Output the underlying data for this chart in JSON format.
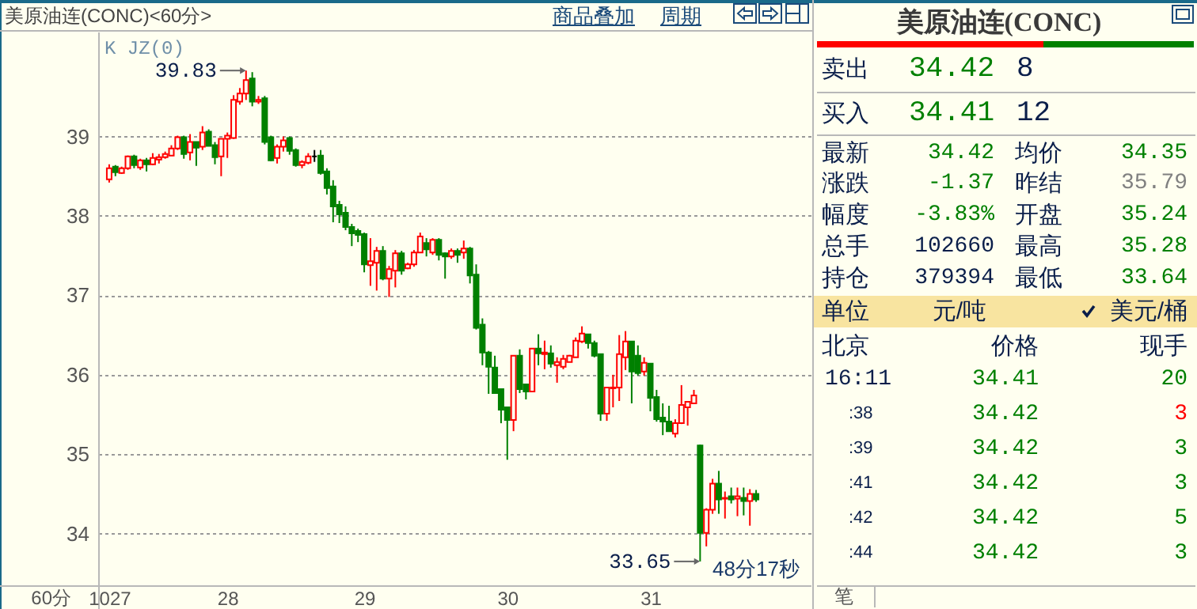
{
  "chart_data": [
    {
      "type": "candlestick",
      "title": "美原油连(CONC)<60分>",
      "categories": [
        "1027",
        null,
        null,
        null,
        null,
        null,
        null,
        null,
        null,
        null,
        null,
        null,
        null,
        null,
        null,
        null,
        null,
        null,
        null,
        "28",
        null,
        null,
        null,
        null,
        null,
        null,
        null,
        null,
        null,
        null,
        null,
        null,
        null,
        null,
        null,
        null,
        null,
        null,
        null,
        null,
        null,
        "29",
        null,
        null,
        null,
        null,
        null,
        null,
        null,
        null,
        null,
        null,
        null,
        null,
        null,
        null,
        null,
        null,
        null,
        null,
        null,
        null,
        null,
        null,
        "30",
        null,
        null,
        null,
        null,
        null,
        null,
        null,
        null,
        null,
        null,
        null,
        null,
        null,
        null,
        null,
        null,
        null,
        null,
        null,
        null,
        null,
        null,
        "31",
        null,
        null,
        null,
        null,
        null,
        null,
        null,
        null,
        null,
        null,
        null,
        null,
        null,
        null,
        null,
        null,
        null
      ],
      "ohlc": [
        [
          38.46,
          38.65,
          38.42,
          38.6
        ],
        [
          38.62,
          38.64,
          38.5,
          38.55
        ],
        [
          38.54,
          38.62,
          38.53,
          38.6
        ],
        [
          38.6,
          38.76,
          38.58,
          38.75
        ],
        [
          38.75,
          38.77,
          38.6,
          38.64
        ],
        [
          38.61,
          38.72,
          38.58,
          38.7
        ],
        [
          38.7,
          38.73,
          38.56,
          38.65
        ],
        [
          38.65,
          38.79,
          38.64,
          38.73
        ],
        [
          38.71,
          38.78,
          38.66,
          38.74
        ],
        [
          38.74,
          38.81,
          38.72,
          38.78
        ],
        [
          38.76,
          38.89,
          38.76,
          38.85
        ],
        [
          38.85,
          39.01,
          38.83,
          38.99
        ],
        [
          38.99,
          39.01,
          38.72,
          38.78
        ],
        [
          38.8,
          39.03,
          38.7,
          38.93
        ],
        [
          38.93,
          38.93,
          38.63,
          38.86
        ],
        [
          38.87,
          39.13,
          38.83,
          39.05
        ],
        [
          39.06,
          39.09,
          38.88,
          38.88
        ],
        [
          38.89,
          38.93,
          38.65,
          38.74
        ],
        [
          38.75,
          38.97,
          38.5,
          38.97
        ],
        [
          38.97,
          39.05,
          38.73,
          39.01
        ],
        [
          38.98,
          39.52,
          38.97,
          39.46
        ],
        [
          39.44,
          39.61,
          39.4,
          39.54
        ],
        [
          39.54,
          39.83,
          39.46,
          39.71
        ],
        [
          39.73,
          39.81,
          39.38,
          39.44
        ],
        [
          39.44,
          39.51,
          39.41,
          39.46
        ],
        [
          39.48,
          39.51,
          38.9,
          38.93
        ],
        [
          38.99,
          39.01,
          38.69,
          38.7
        ],
        [
          38.73,
          38.9,
          38.66,
          38.87
        ],
        [
          38.87,
          39.0,
          38.81,
          38.95
        ],
        [
          38.98,
          39.0,
          38.77,
          38.82
        ],
        [
          38.83,
          38.85,
          38.62,
          38.64
        ],
        [
          38.64,
          38.7,
          38.6,
          38.68
        ],
        [
          38.67,
          38.79,
          38.65,
          38.75
        ],
        [
          38.75,
          38.83,
          38.68,
          38.75
        ],
        [
          38.76,
          38.83,
          38.52,
          38.54
        ],
        [
          38.56,
          38.6,
          38.27,
          38.35
        ],
        [
          38.37,
          38.45,
          37.92,
          38.12
        ],
        [
          38.14,
          38.19,
          37.91,
          38.02
        ],
        [
          38.04,
          38.12,
          37.82,
          37.86
        ],
        [
          37.86,
          37.9,
          37.62,
          37.78
        ],
        [
          37.81,
          37.84,
          37.67,
          37.76
        ],
        [
          37.77,
          37.79,
          37.29,
          37.39
        ],
        [
          37.38,
          37.72,
          37.12,
          37.43
        ],
        [
          37.41,
          37.61,
          37.06,
          37.56
        ],
        [
          37.56,
          37.62,
          37.19,
          37.21
        ],
        [
          37.21,
          37.37,
          36.98,
          37.33
        ],
        [
          37.31,
          37.57,
          37.1,
          37.53
        ],
        [
          37.53,
          37.56,
          37.26,
          37.31
        ],
        [
          37.34,
          37.41,
          37.33,
          37.39
        ],
        [
          37.39,
          37.57,
          37.36,
          37.54
        ],
        [
          37.54,
          37.79,
          37.54,
          37.74
        ],
        [
          37.66,
          37.72,
          37.49,
          37.58
        ],
        [
          37.54,
          37.72,
          37.51,
          37.7
        ],
        [
          37.7,
          37.72,
          37.44,
          37.51
        ],
        [
          37.53,
          37.54,
          37.21,
          37.49
        ],
        [
          37.49,
          37.59,
          37.46,
          37.56
        ],
        [
          37.56,
          37.59,
          37.41,
          37.51
        ],
        [
          37.54,
          37.69,
          37.46,
          37.59
        ],
        [
          37.59,
          37.61,
          37.15,
          37.25
        ],
        [
          37.26,
          37.39,
          36.57,
          36.59
        ],
        [
          36.63,
          36.71,
          36.12,
          36.28
        ],
        [
          36.28,
          36.3,
          35.76,
          36.1
        ],
        [
          36.09,
          36.24,
          35.77,
          35.77
        ],
        [
          35.82,
          35.82,
          35.39,
          35.56
        ],
        [
          35.59,
          35.59,
          34.93,
          35.43
        ],
        [
          35.43,
          36.24,
          35.29,
          36.24
        ],
        [
          36.24,
          36.32,
          35.77,
          35.82
        ],
        [
          35.88,
          35.88,
          35.69,
          35.79
        ],
        [
          35.79,
          36.33,
          35.79,
          36.33
        ],
        [
          36.33,
          36.51,
          36.12,
          36.27
        ],
        [
          36.26,
          36.43,
          36.07,
          36.28
        ],
        [
          36.27,
          36.37,
          36.09,
          36.14
        ],
        [
          36.12,
          36.22,
          35.9,
          36.16
        ],
        [
          36.1,
          36.25,
          36.07,
          36.2
        ],
        [
          36.16,
          36.25,
          36.16,
          36.24
        ],
        [
          36.22,
          36.47,
          36.22,
          36.43
        ],
        [
          36.42,
          36.61,
          36.4,
          36.52
        ],
        [
          36.51,
          36.51,
          36.33,
          36.4
        ],
        [
          36.4,
          36.43,
          36.22,
          36.24
        ],
        [
          36.26,
          36.26,
          35.42,
          35.51
        ],
        [
          35.51,
          35.84,
          35.42,
          35.84
        ],
        [
          35.83,
          36.0,
          35.59,
          35.84
        ],
        [
          35.84,
          36.5,
          35.67,
          36.26
        ],
        [
          36.22,
          36.55,
          36.06,
          36.42
        ],
        [
          36.42,
          36.42,
          35.64,
          36.04
        ],
        [
          36.24,
          36.37,
          35.99,
          36.02
        ],
        [
          36.04,
          36.22,
          35.99,
          36.15
        ],
        [
          36.14,
          36.14,
          35.54,
          35.71
        ],
        [
          35.72,
          35.81,
          35.41,
          35.44
        ],
        [
          35.46,
          35.64,
          35.24,
          35.41
        ],
        [
          35.41,
          35.61,
          35.29,
          35.29
        ],
        [
          35.26,
          35.44,
          35.21,
          35.39
        ],
        [
          35.39,
          35.87,
          35.38,
          35.62
        ],
        [
          35.59,
          35.67,
          35.36,
          35.66
        ],
        [
          35.64,
          35.81,
          35.64,
          35.74
        ],
        [
          35.11,
          35.12,
          33.65,
          34.01
        ],
        [
          34.01,
          34.32,
          33.84,
          34.3
        ],
        [
          34.3,
          34.69,
          34.25,
          34.63
        ],
        [
          34.63,
          34.79,
          34.25,
          34.43
        ],
        [
          34.44,
          34.53,
          34.19,
          34.45
        ],
        [
          34.47,
          34.58,
          34.38,
          34.43
        ],
        [
          34.44,
          34.58,
          34.22,
          34.47
        ],
        [
          34.45,
          34.58,
          34.23,
          34.41
        ],
        [
          34.41,
          34.56,
          34.1,
          34.5
        ],
        [
          34.5,
          34.55,
          34.4,
          34.43
        ]
      ],
      "ylim": [
        33.35,
        40.32
      ],
      "yticks": [
        34,
        35,
        36,
        37,
        38,
        39
      ],
      "grid": "y",
      "annotations": [
        "K JZ(0)",
        "39.83",
        "33.65",
        "48分17秒",
        "60分",
        "商品叠加",
        "周期"
      ]
    },
    {
      "type": "other",
      "title": "美原油连(CONC)",
      "annotations": [
        "卖出",
        "34.42",
        "8",
        "买入",
        "34.41",
        "12",
        "最新",
        "34.42",
        "均价",
        "34.35",
        "涨跌",
        "-1.37",
        "昨结",
        "35.79",
        "幅度",
        "-3.83%",
        "开盘",
        "35.24",
        "总手",
        "102660",
        "最高",
        "35.28",
        "持仓",
        "379394",
        "最低",
        "33.64",
        "单位",
        "元/吨",
        "美元/桶",
        "北京",
        "价格",
        "现手",
        "16:11",
        "34.41",
        "20",
        ":38",
        "34.42",
        "3",
        ":39",
        "34.42",
        "3",
        ":41",
        "34.42",
        "3",
        ":42",
        "34.42",
        "5",
        ":44",
        "34.42",
        "3",
        "笔"
      ]
    }
  ]
}
